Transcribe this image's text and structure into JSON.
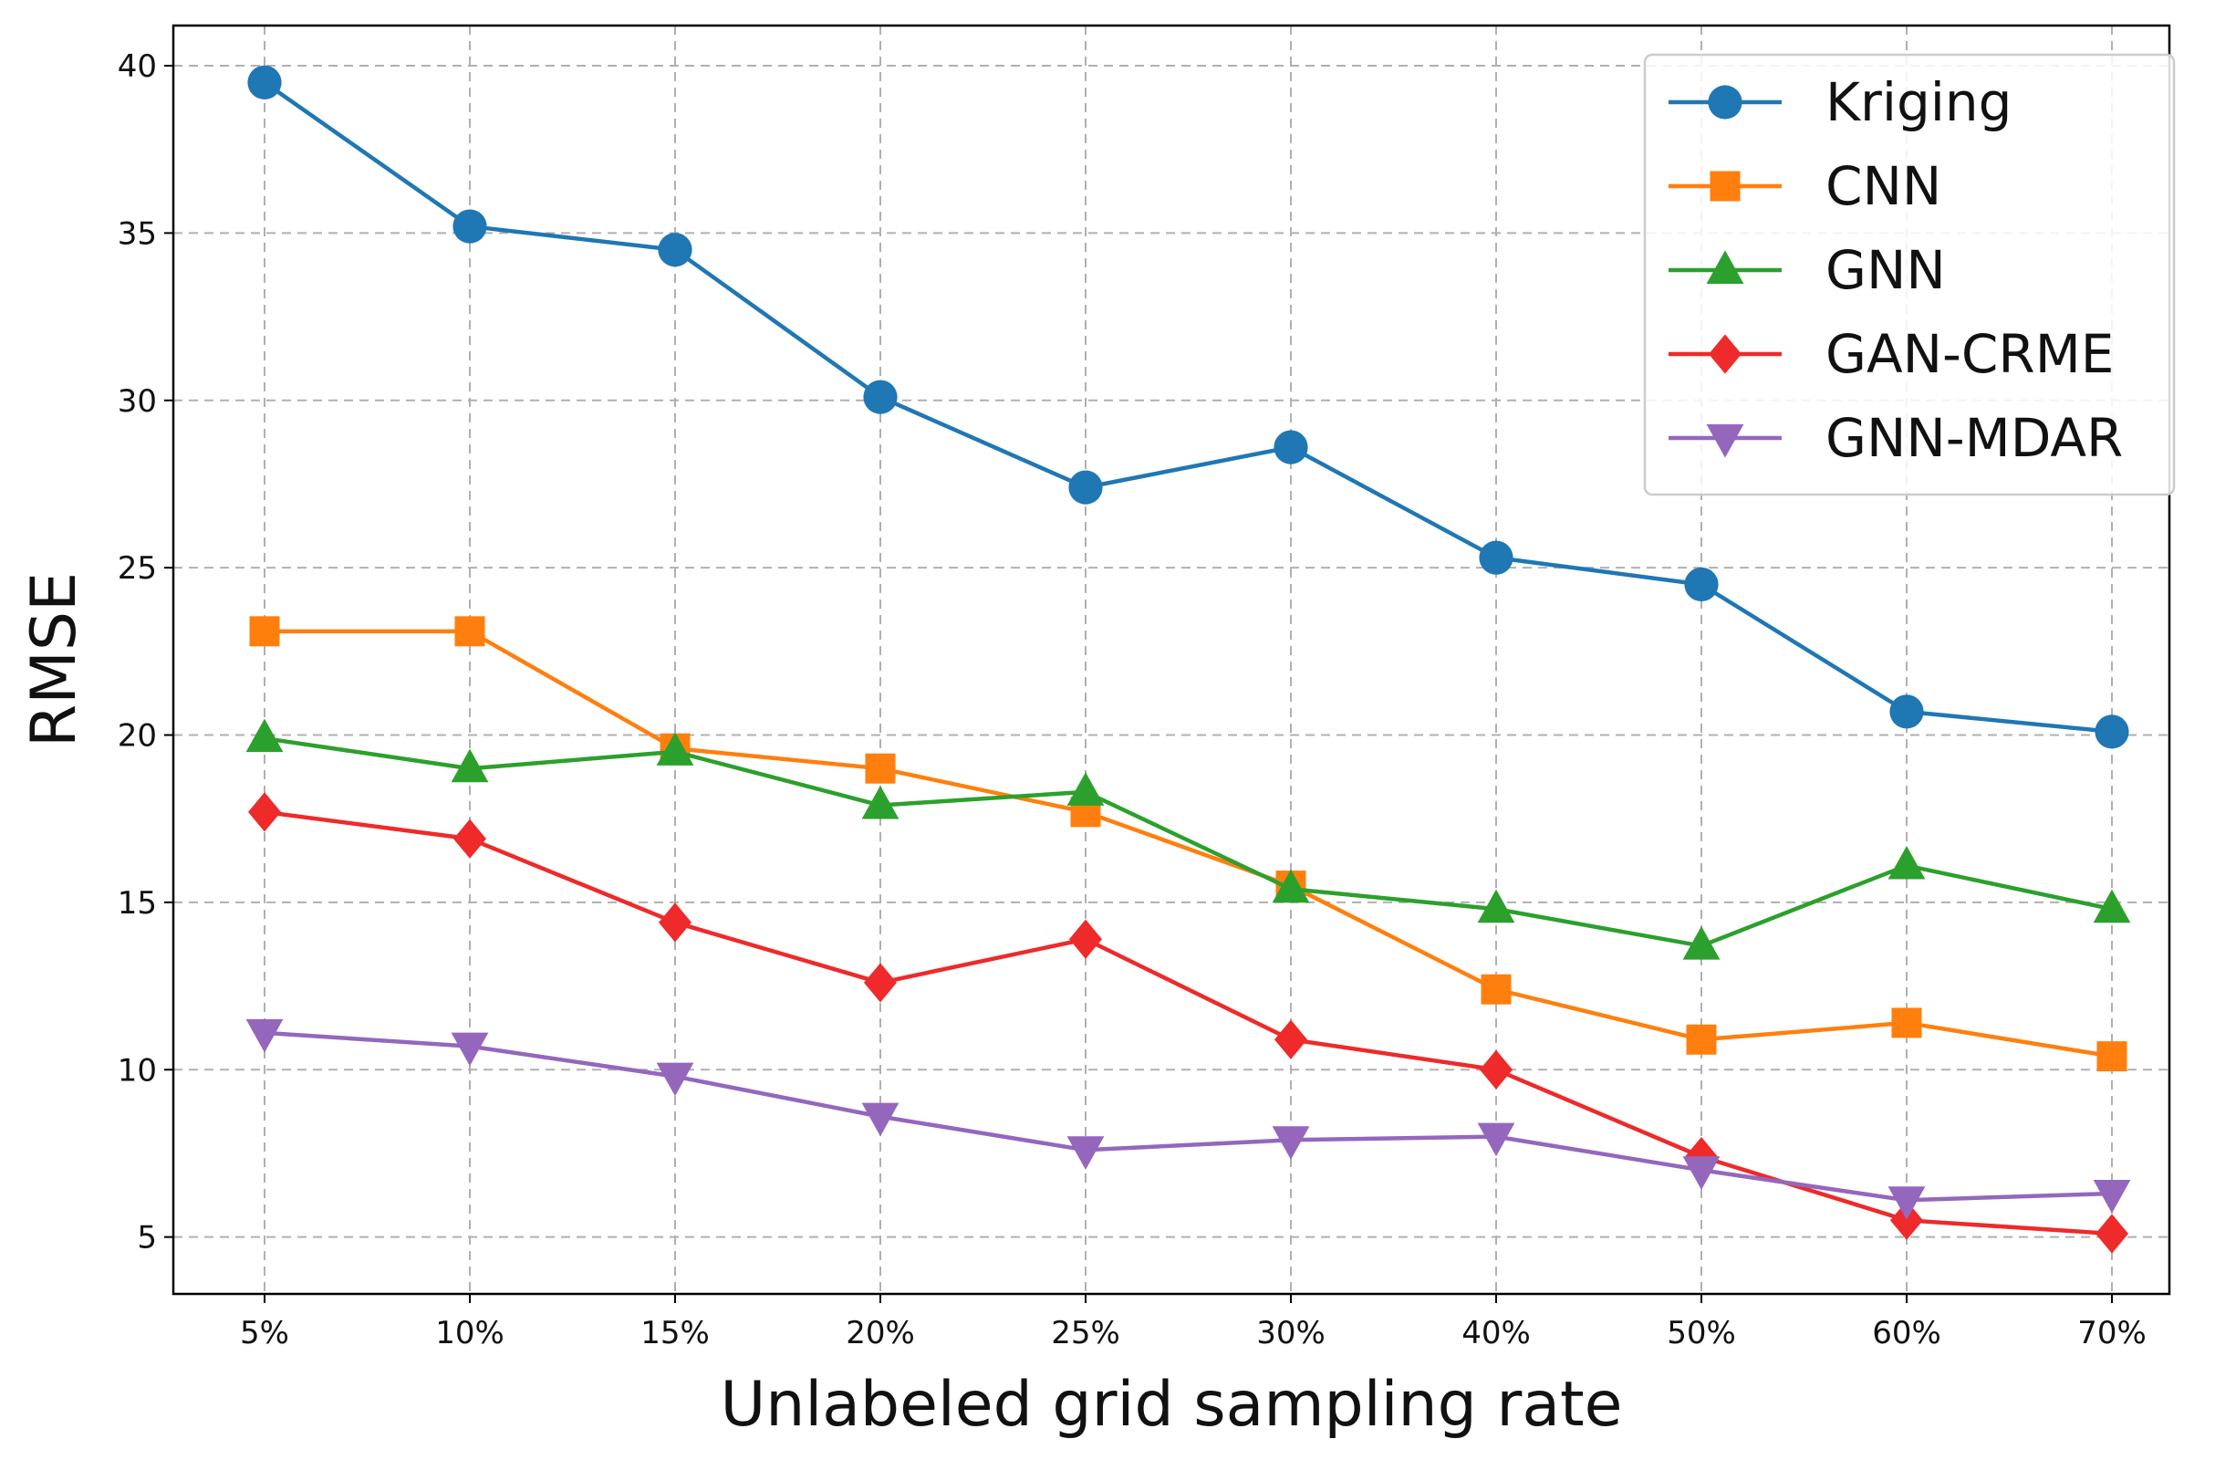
{
  "chart_data": {
    "type": "line",
    "title": "",
    "xlabel": "Unlabeled grid sampling rate",
    "ylabel": "RMSE",
    "categories": [
      "5%",
      "10%",
      "15%",
      "20%",
      "25%",
      "30%",
      "40%",
      "50%",
      "60%",
      "70%"
    ],
    "ylim": [
      3.3,
      41.2
    ],
    "yticks": [
      5,
      10,
      15,
      20,
      25,
      30,
      35,
      40
    ],
    "grid": true,
    "legend_position": "top-right",
    "series": [
      {
        "name": "Kriging",
        "color": "#1f77b4",
        "marker": "circle",
        "values": [
          39.5,
          35.2,
          34.5,
          30.1,
          27.4,
          28.6,
          25.3,
          24.5,
          20.7,
          20.1
        ]
      },
      {
        "name": "CNN",
        "color": "#ff7f0e",
        "marker": "square",
        "values": [
          23.1,
          23.1,
          19.6,
          19.0,
          17.7,
          15.5,
          12.4,
          10.9,
          11.4,
          10.4
        ]
      },
      {
        "name": "GNN",
        "color": "#2ca02c",
        "marker": "triangle-up",
        "values": [
          19.9,
          19.0,
          19.5,
          17.9,
          18.3,
          15.4,
          14.8,
          13.7,
          16.1,
          14.8
        ]
      },
      {
        "name": "GAN-CRME",
        "color": "#ee2a2a",
        "marker": "diamond",
        "values": [
          17.7,
          16.9,
          14.4,
          12.6,
          13.9,
          10.9,
          10.0,
          7.4,
          5.5,
          5.1
        ]
      },
      {
        "name": "GNN-MDAR",
        "color": "#9467bd",
        "marker": "triangle-down",
        "values": [
          11.1,
          10.7,
          9.8,
          8.6,
          7.6,
          7.9,
          8.0,
          7.0,
          6.1,
          6.3
        ]
      }
    ]
  }
}
